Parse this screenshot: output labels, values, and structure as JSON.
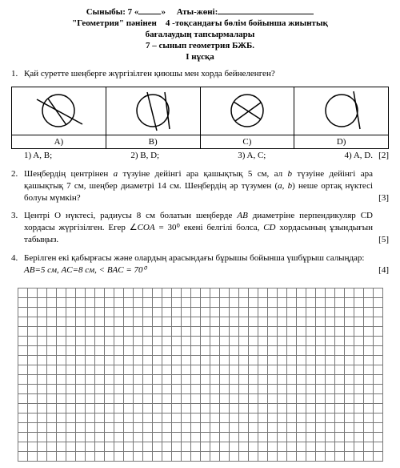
{
  "header": {
    "class_label": "Сыныбы: 7 «",
    "class_suffix": "»",
    "name_label": "Аты-жөні:",
    "subject": "\"Геометрия\" пәнінен",
    "quarter": "4",
    "title_rest": "-тоқсандағы бөлім бойынша жиынтық",
    "title_line2": "бағалаудың тапсырмалары",
    "grade_line": "7 – сынып геометрия  БЖБ.",
    "variant": "І нұсқа"
  },
  "q1": {
    "num": "1.",
    "text": "Қай суретте шеңберге жүргізілген қиюшы мен хорда бейнеленген?",
    "labels": {
      "a": "A)",
      "b": "B)",
      "c": "C)",
      "d": "D)"
    },
    "opts": {
      "o1": "1)  A, B;",
      "o2": "2) B, D;",
      "o3": "3) A, C;",
      "o4": "4) A, D."
    },
    "points": "[2]"
  },
  "q2": {
    "num": "2.",
    "text_a": "Шеңбердің центрінен ",
    "text_b": " түзуіне дейінгі ара қашықтық 5 см, ал ",
    "text_c": " түзуіне дейінгі ара қашықтық 7 см, шеңбер диаметрі 14 см. Шеңбердің әр түзумен (",
    "text_d": ", ",
    "text_e": ") неше ортақ нүктесі болуы мүмкін?",
    "a": "a",
    "b": "b",
    "points": "[3]"
  },
  "q3": {
    "num": "3.",
    "text_a": "Центрі О нүктесі, радиусы 8 см болатын шеңберде ",
    "ab": "AB",
    "text_b": " диаметріне перпендикуляр CD хордасы жүргізілген. Егер ∠",
    "coa": "COA",
    "text_c": " = 30⁰ екені белгілі болса, ",
    "cd": "CD",
    "text_d": " хордасының ұзындығын табыңыз.",
    "points": "[5]"
  },
  "q4": {
    "num": "4.",
    "text": "Берілген екі қабырғасы және олардың арасындағы бұрышы бойынша үшбұрыш салыңдар:",
    "data": "AB=5 см, AC=8 см, < BAC = 70⁰",
    "points": "[4]"
  },
  "grid": {
    "rows": 18,
    "cols": 38
  }
}
